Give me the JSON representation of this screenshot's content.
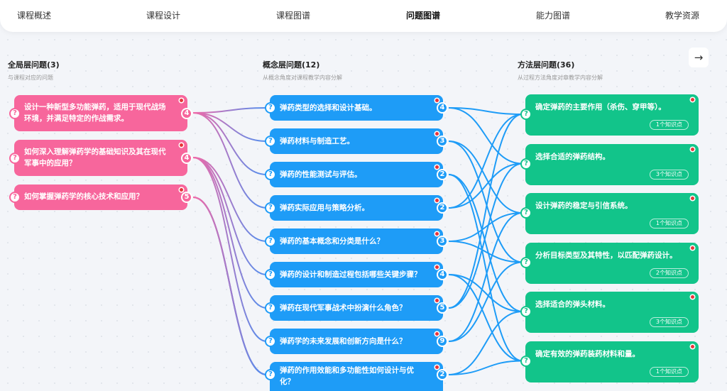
{
  "nav": {
    "tabs": [
      "课程概述",
      "课程设计",
      "课程图谱",
      "问题图谱",
      "能力图谱",
      "教学资源"
    ],
    "active": 3
  },
  "columns": [
    {
      "title": "全局层问题(3)",
      "subtitle": "与课程对应的问题"
    },
    {
      "title": "概念层问题(12)",
      "subtitle": "从概念角度对课程教学内容分解"
    },
    {
      "title": "方法层问题(36)",
      "subtitle": "从过程方法角度对章教学内容分解"
    }
  ],
  "next_icon": "arrow-right-icon",
  "colors": {
    "global": "#f7669c",
    "concept": "#1e9cf7",
    "method": "#12c48a"
  },
  "global": [
    {
      "text": "设计一种新型多功能弹药，适用于现代战场环境，并满足特定的作战需求。",
      "count": "4"
    },
    {
      "text": "如何深入理解弹药学的基础知识及其在现代军事中的应用？",
      "count": "4"
    },
    {
      "text": "如何掌握弹药学的核心技术和应用？",
      "count": "5"
    }
  ],
  "concept": [
    {
      "text": "弹药类型的选择和设计基础。",
      "count": "4"
    },
    {
      "text": "弹药材料与制造工艺。",
      "count": "3"
    },
    {
      "text": "弹药的性能测试与评估。",
      "count": "2"
    },
    {
      "text": "弹药实际应用与策略分析。",
      "count": "2"
    },
    {
      "text": "弹药的基本概念和分类是什么？",
      "count": "3"
    },
    {
      "text": "弹药的设计和制造过程包括哪些关键步骤？",
      "count": "4"
    },
    {
      "text": "弹药在现代军事战术中扮演什么角色？",
      "count": "5"
    },
    {
      "text": "弹药学的未来发展和创新方向是什么？",
      "count": "9"
    },
    {
      "text": "弹药的作用效能和多功能性如何设计与优化？",
      "count": "2"
    }
  ],
  "method": [
    {
      "text": "确定弹药的主要作用（杀伤、穿甲等）。",
      "kp": "1个知识点"
    },
    {
      "text": "选择合适的弹药结构。",
      "kp": "3个知识点"
    },
    {
      "text": "设计弹药的稳定与引信系统。",
      "kp": "1个知识点"
    },
    {
      "text": "分析目标类型及其特性，以匹配弹药设计。",
      "kp": "2个知识点"
    },
    {
      "text": "选择适合的弹头材料。",
      "kp": "3个知识点"
    },
    {
      "text": "确定有效的弹药装药材料和量。",
      "kp": "1个知识点"
    },
    {
      "text": "",
      "kp": ""
    }
  ]
}
